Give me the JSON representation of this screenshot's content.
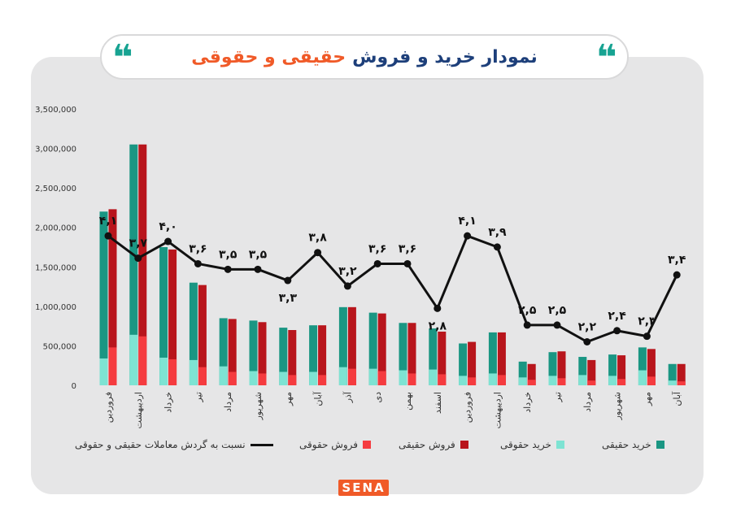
{
  "title": {
    "main": "نمودار خرید و فروش",
    "accent": "حقیقی و حقوقی"
  },
  "quote_glyph": "❝",
  "logo_text": "SENA",
  "colors": {
    "buy_real": "#1a9683",
    "buy_legal": "#7ee3d3",
    "sell_real": "#b8151c",
    "sell_legal": "#f53b3f",
    "ratio_line": "#111111",
    "accent": "#f05a28",
    "title": "#1d3f7a"
  },
  "chart_data": {
    "type": "bar",
    "categories": [
      "فروردین",
      "اردیبهشت",
      "خرداد",
      "تیر",
      "مرداد",
      "شهریور",
      "مهر",
      "آبان",
      "آذر",
      "دی",
      "بهمن",
      "اسفند",
      "فروردین",
      "اردیبهشت",
      "خرداد",
      "تیر",
      "مرداد",
      "شهریور",
      "مهر",
      "آبان"
    ],
    "ylim": [
      0,
      3500000
    ],
    "yticks": [
      "0",
      "500,000",
      "1,000,000",
      "1,500,000",
      "2,000,000",
      "2,500,000",
      "3,000,000",
      "3,500,000"
    ],
    "bar_series": [
      {
        "name": "خرید حقیقی",
        "values": [
          2200000,
          3050000,
          1750000,
          1300000,
          850000,
          820000,
          730000,
          760000,
          990000,
          920000,
          790000,
          720000,
          530000,
          670000,
          300000,
          420000,
          360000,
          390000,
          480000,
          270000
        ]
      },
      {
        "name": "خرید حقوقی",
        "values": [
          340000,
          640000,
          350000,
          320000,
          240000,
          180000,
          170000,
          170000,
          230000,
          210000,
          190000,
          200000,
          120000,
          150000,
          100000,
          120000,
          130000,
          120000,
          190000,
          60000
        ]
      },
      {
        "name": "فروش حقیقی",
        "values": [
          2230000,
          3050000,
          1720000,
          1270000,
          840000,
          800000,
          700000,
          760000,
          990000,
          910000,
          790000,
          680000,
          550000,
          670000,
          270000,
          430000,
          320000,
          380000,
          460000,
          270000
        ]
      },
      {
        "name": "فروش حقوقی",
        "values": [
          480000,
          620000,
          330000,
          230000,
          170000,
          150000,
          130000,
          130000,
          210000,
          180000,
          150000,
          140000,
          100000,
          130000,
          70000,
          90000,
          60000,
          80000,
          110000,
          50000
        ]
      }
    ],
    "line_series": {
      "name": "نسبت به گردش معاملات حقیقی و حقوقی",
      "values": [
        4.1,
        3.7,
        4.0,
        3.6,
        3.5,
        3.5,
        3.3,
        3.8,
        3.2,
        3.6,
        3.6,
        2.8,
        4.1,
        3.9,
        2.5,
        2.5,
        2.2,
        2.4,
        2.3,
        3.4
      ],
      "labels": [
        "۴,۱",
        "۳,۷",
        "۴,۰",
        "۳,۶",
        "۳,۵",
        "۳,۵",
        "۳,۳",
        "۳,۸",
        "۳,۲",
        "۳,۶",
        "۳,۶",
        "۲,۸",
        "۴,۱",
        "۳,۹",
        "۲,۵",
        "۲,۵",
        "۲,۲",
        "۲,۴",
        "۲,۳",
        "۳,۴"
      ],
      "label_pos": [
        "above",
        "above",
        "above",
        "above",
        "above",
        "above",
        "below",
        "above",
        "above",
        "above",
        "above",
        "below",
        "above",
        "above",
        "above",
        "above",
        "above",
        "above",
        "above",
        "above"
      ]
    },
    "legend": [
      {
        "name": "خرید حقیقی",
        "kind": "bar",
        "color_key": "buy_real"
      },
      {
        "name": "خرید حقوقی",
        "kind": "bar",
        "color_key": "buy_legal"
      },
      {
        "name": "فروش حقیقی",
        "kind": "bar",
        "color_key": "sell_real"
      },
      {
        "name": "فروش حقوقی",
        "kind": "bar",
        "color_key": "sell_legal"
      },
      {
        "name": "نسبت به گردش معاملات حقیقی و حقوقی",
        "kind": "line",
        "color_key": "ratio_line"
      }
    ],
    "legend_position": "bottom",
    "grid": false
  }
}
